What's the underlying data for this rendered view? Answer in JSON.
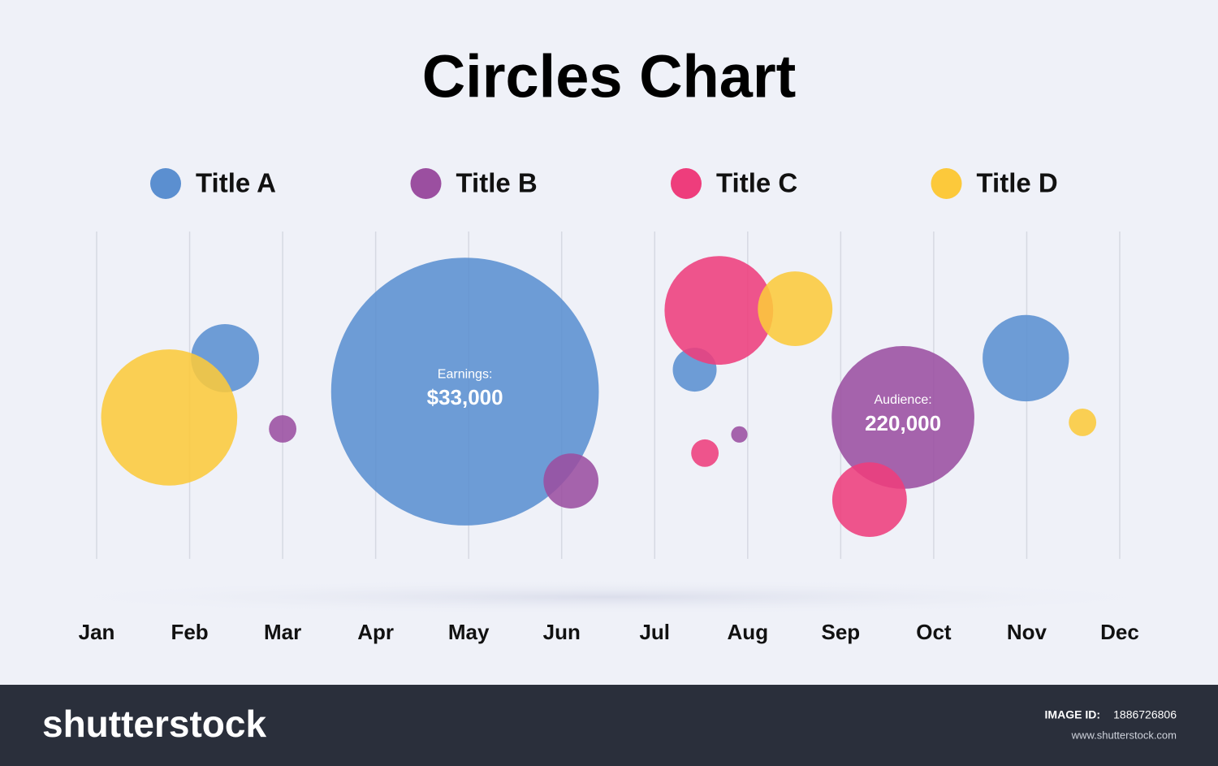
{
  "chart_data": {
    "type": "bubble",
    "title": "Circles Chart",
    "xlim": [
      0.95,
      12.05
    ],
    "xticks": [
      {
        "value": 1,
        "label": "Jan"
      },
      {
        "value": 2,
        "label": "Feb"
      },
      {
        "value": 3,
        "label": "Mar"
      },
      {
        "value": 4,
        "label": "Apr"
      },
      {
        "value": 5,
        "label": "May"
      },
      {
        "value": 6,
        "label": "Jun"
      },
      {
        "value": 7,
        "label": "Jul"
      },
      {
        "value": 8,
        "label": "Aug"
      },
      {
        "value": 9,
        "label": "Sep"
      },
      {
        "value": 10,
        "label": "Oct"
      },
      {
        "value": 11,
        "label": "Nov"
      },
      {
        "value": 12,
        "label": "Dec"
      }
    ],
    "ylim": [
      0,
      100
    ],
    "grid": true,
    "series": [
      {
        "name": "Title A",
        "color": "#5b8fd0",
        "x": [
          2.38,
          4.96,
          7.43,
          10.99
        ],
        "values": [
          61.3,
          51.1,
          57.8,
          61.3
        ],
        "sizes": [
          10.4,
          40.9,
          6.7,
          13.2
        ],
        "point_titles": [
          null,
          "Earnings:",
          null,
          null
        ],
        "point_labels": [
          null,
          "$33,000",
          null,
          null
        ]
      },
      {
        "name": "Title B",
        "color": "#9b4fa0",
        "x": [
          3.0,
          6.1,
          7.91,
          9.67
        ],
        "values": [
          39.7,
          23.8,
          38.0,
          43.2
        ],
        "sizes": [
          4.2,
          8.4,
          2.5,
          21.8
        ],
        "point_titles": [
          null,
          null,
          null,
          "Audience:"
        ],
        "point_labels": [
          null,
          null,
          null,
          "220,000"
        ]
      },
      {
        "name": "Title C",
        "color": "#ee3d7c",
        "x": [
          7.69,
          7.54,
          9.31
        ],
        "values": [
          75.9,
          32.3,
          18.1
        ],
        "sizes": [
          16.6,
          4.2,
          11.4
        ]
      },
      {
        "name": "Title D",
        "color": "#fcc93b",
        "x": [
          1.78,
          8.51,
          11.6
        ],
        "values": [
          43.2,
          76.4,
          41.7
        ],
        "sizes": [
          20.8,
          11.4,
          4.2
        ]
      }
    ]
  },
  "footer": {
    "brand": "shutterstock",
    "image_id_label": "IMAGE ID:",
    "image_id": "1886726806",
    "url": "www.shutterstock.com"
  }
}
